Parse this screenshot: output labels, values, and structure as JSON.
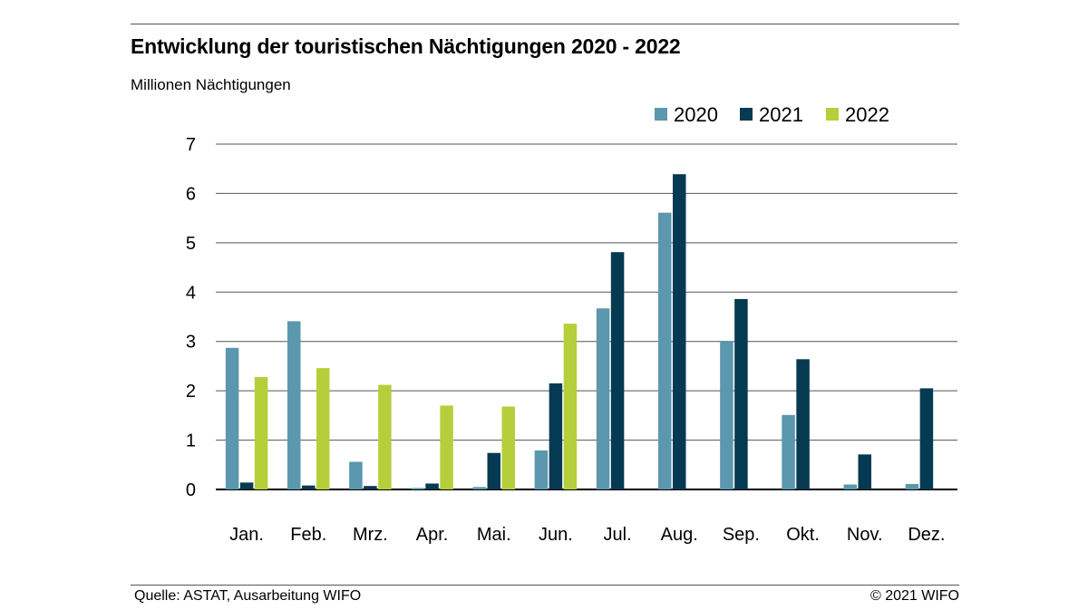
{
  "header": {
    "title": "Entwicklung der touristischen Nächtigungen 2020 - 2022",
    "subtitle": "Millionen Nächtigungen"
  },
  "footer": {
    "source": "Quelle: ASTAT, Ausarbeitung WIFO",
    "copyright": "© 2021 WIFO"
  },
  "chart_data": {
    "type": "bar",
    "title": "Entwicklung der touristischen Nächtigungen 2020 - 2022",
    "ylabel": "Millionen Nächtigungen",
    "xlabel": "",
    "ylim": [
      0,
      7
    ],
    "yticks": [
      "0",
      "1",
      "2",
      "3",
      "4",
      "5",
      "6",
      "7"
    ],
    "grid": true,
    "legend_position": "top-right",
    "categories": [
      "Jan.",
      "Feb.",
      "Mrz.",
      "Apr.",
      "Mai.",
      "Jun.",
      "Jul.",
      "Aug.",
      "Sep.",
      "Okt.",
      "Nov.",
      "Dez."
    ],
    "series": [
      {
        "name": "2020",
        "color": "#5b97ae",
        "values": [
          2.87,
          3.41,
          0.56,
          0.03,
          0.05,
          0.79,
          3.67,
          5.61,
          3.01,
          1.51,
          0.1,
          0.11
        ]
      },
      {
        "name": "2021",
        "color": "#053a52",
        "values": [
          0.14,
          0.08,
          0.07,
          0.12,
          0.74,
          2.15,
          4.81,
          6.39,
          3.86,
          2.64,
          0.71,
          2.05
        ]
      },
      {
        "name": "2022",
        "color": "#b5cf3b",
        "values": [
          2.28,
          2.46,
          2.12,
          1.7,
          1.68,
          3.36,
          null,
          null,
          null,
          null,
          null,
          null
        ]
      }
    ]
  }
}
